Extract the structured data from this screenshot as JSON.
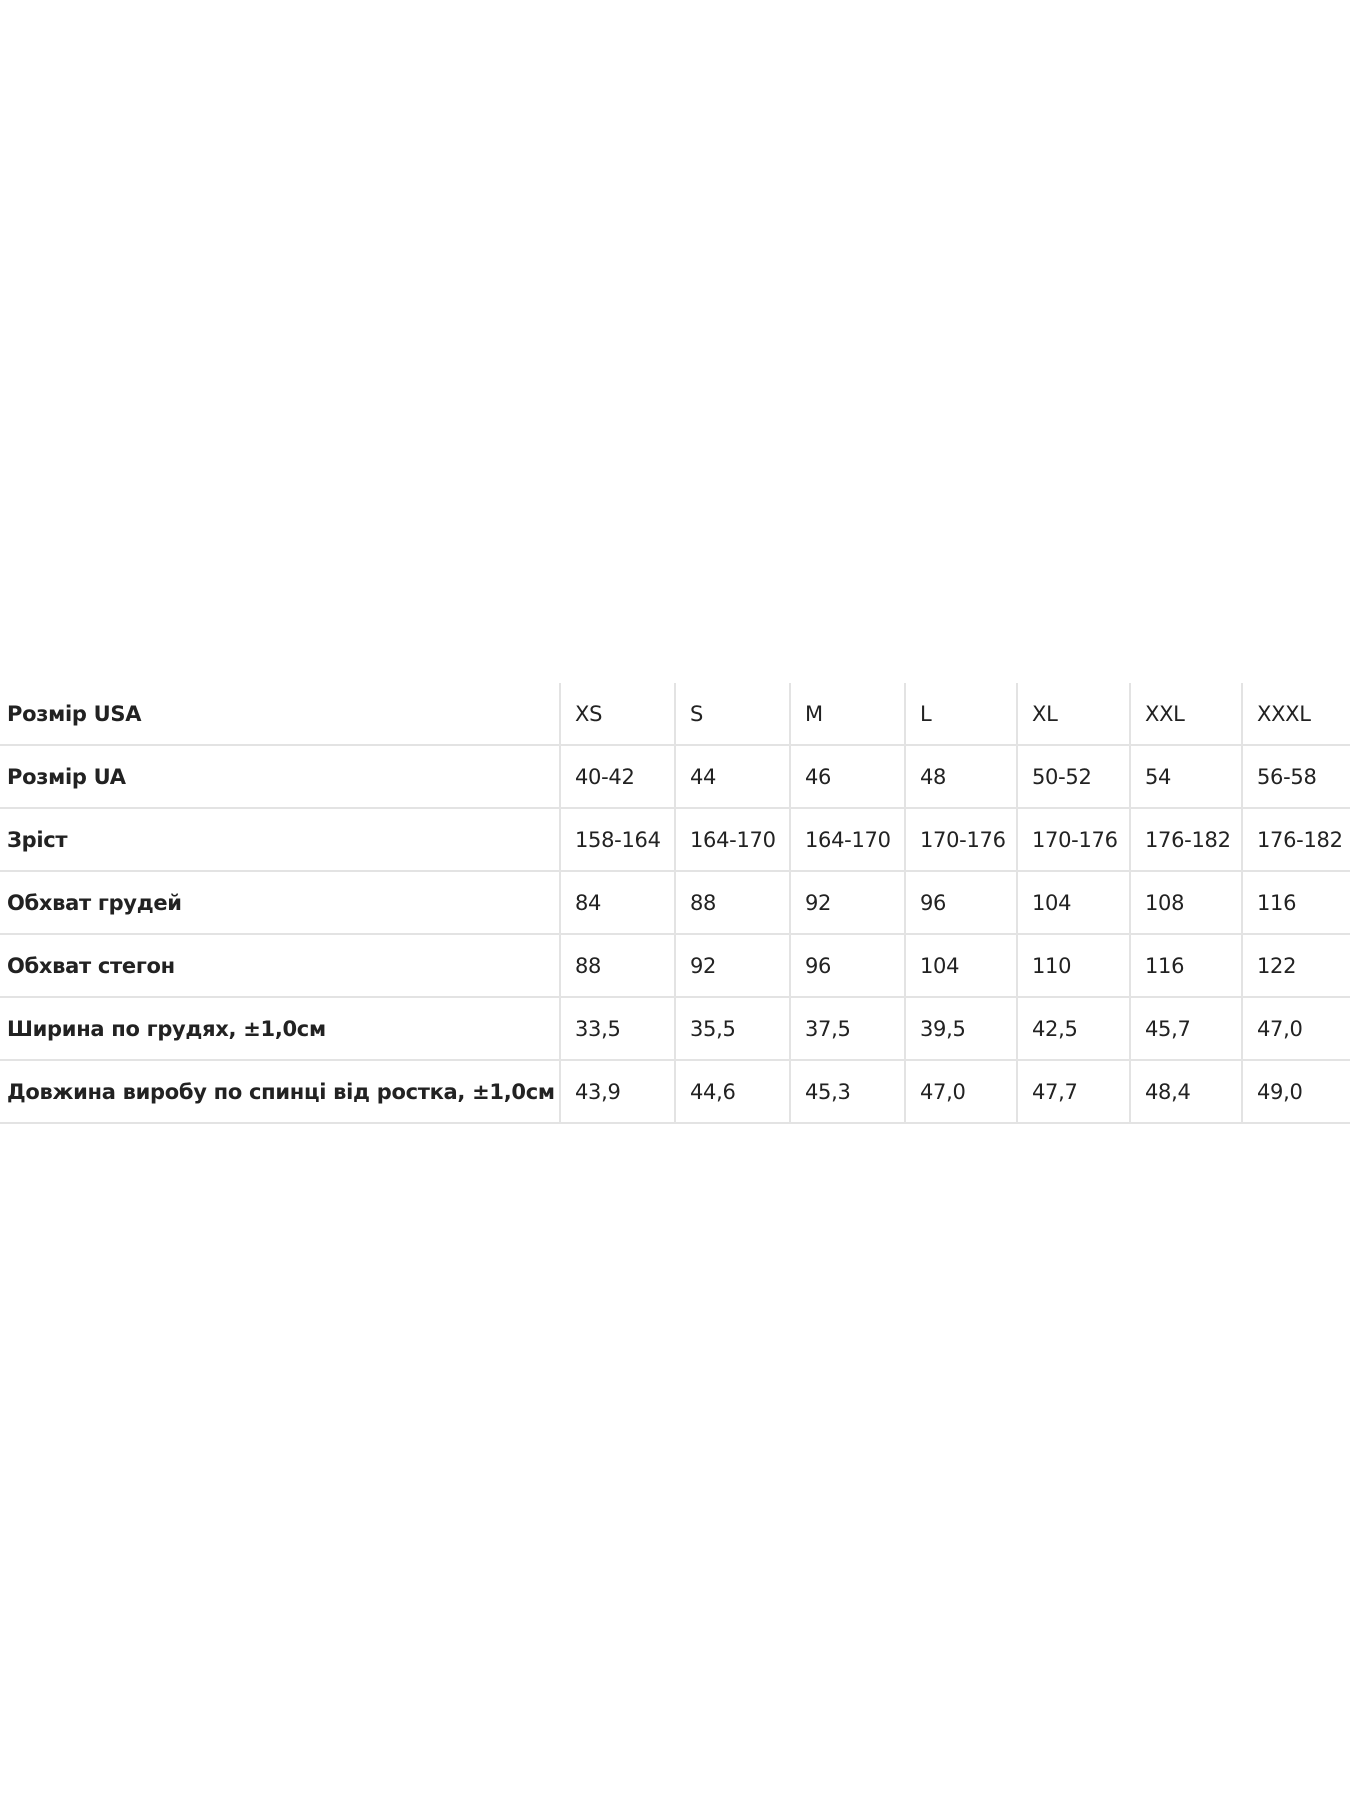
{
  "table": {
    "rows": [
      {
        "label": "Розмір USA",
        "values": [
          "XS",
          "S",
          "M",
          "L",
          "XL",
          "XXL",
          "XXXL"
        ]
      },
      {
        "label": "Розмір UA",
        "values": [
          "40-42",
          "44",
          "46",
          "48",
          "50-52",
          "54",
          "56-58"
        ]
      },
      {
        "label": "Зріст",
        "values": [
          "158-164",
          "164-170",
          "164-170",
          "170-176",
          "170-176",
          "176-182",
          "176-182"
        ]
      },
      {
        "label": "Обхват грудей",
        "values": [
          "84",
          "88",
          "92",
          "96",
          "104",
          "108",
          "116"
        ]
      },
      {
        "label": "Обхват стегон",
        "values": [
          "88",
          "92",
          "96",
          "104",
          "110",
          "116",
          "122"
        ]
      },
      {
        "label": "Ширина по грудях, ±1,0см",
        "values": [
          "33,5",
          "35,5",
          "37,5",
          "39,5",
          "42,5",
          "45,7",
          "47,0"
        ]
      },
      {
        "label": "Довжина виробу по спинці від ростка, ±1,0см",
        "values": [
          "43,9",
          "44,6",
          "45,3",
          "47,0",
          "47,7",
          "48,4",
          "49,0"
        ]
      }
    ]
  }
}
